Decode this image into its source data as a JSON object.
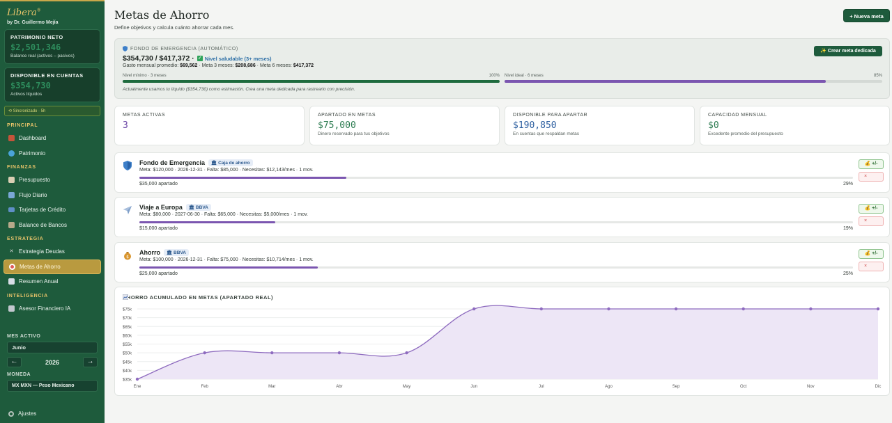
{
  "sidebar": {
    "brand": "Libera",
    "brand_mark": "®",
    "author": "by Dr. Guillermo Mejía",
    "net_worth": {
      "label": "PATRIMONIO NETO",
      "value": "$2,501,346",
      "sub": "Balance real (activos – pasivos)"
    },
    "available": {
      "label": "DISPONIBLE EN CUENTAS",
      "value": "$354,730",
      "sub": "Activos líquidos"
    },
    "sync": "⟲ Sincronizado · 5h",
    "sections": {
      "principal": "PRINCIPAL",
      "finanzas": "FINANZAS",
      "estrategia": "ESTRATEGIA",
      "inteligencia": "INTELIGENCIA"
    },
    "items": {
      "dashboard": "Dashboard",
      "patrimonio": "Patrimonio",
      "presupuesto": "Presupuesto",
      "flujo": "Flujo Diario",
      "tarjetas": "Tarjetas de Crédito",
      "bancos": "Balance de Bancos",
      "deudas": "Estrategia Deudas",
      "metas": "Metas de Ahorro",
      "resumen": "Resumen Anual",
      "asesor": "Asesor Financiero IA"
    },
    "month_label": "MES ACTIVO",
    "month": "Junio",
    "prev": "←",
    "next": "→",
    "year": "2026",
    "currency_label": "MONEDA",
    "currency": "MX MXN — Peso Mexicano",
    "settings": "Ajustes"
  },
  "header": {
    "title": "Metas de Ahorro",
    "subtitle": "Define objetivos y calcula cuánto ahorrar cada mes.",
    "new_goal": "+ Nueva meta"
  },
  "emergency": {
    "title": "FONDO DE EMERGENCIA (AUTOMÁTICO)",
    "amount": "$354,730 / $417,372 ·",
    "health": "Nivel saludable (3+ meses)",
    "line_prefix": "Gasto mensual promedio:",
    "avg_spend": "$69,562",
    "meta3_label": "· Meta 3 meses:",
    "meta3": "$208,686",
    "meta6_label": "· Meta 6 meses:",
    "meta6": "$417,372",
    "create_button": "✨ Crear meta dedicada",
    "min_label": "Nivel mínimo · 3 meses",
    "min_pct": "100%",
    "min_fill": 1.0,
    "ideal_label": "Nivel ideal · 6 meses",
    "ideal_pct": "85%",
    "ideal_fill": 0.85,
    "note": "Actualmente usamos tu líquido ($354,730) como estimación. Crea una meta dedicada para rastrearlo con precisión."
  },
  "stats": [
    {
      "label": "METAS ACTIVAS",
      "value": "3",
      "desc": "",
      "color": "#6b46a6"
    },
    {
      "label": "APARTADO EN METAS",
      "value": "$75,000",
      "desc": "Dinero reservado para tus objetivos",
      "color": "#2a7a4f"
    },
    {
      "label": "DISPONIBLE PARA APARTAR",
      "value": "$190,850",
      "desc": "En cuentas que respaldan metas",
      "color": "#2d5fa0"
    },
    {
      "label": "CAPACIDAD MENSUAL",
      "value": "$0",
      "desc": "Excedente promedio del presupuesto",
      "color": "#2a7a4f"
    }
  ],
  "goals": [
    {
      "name": "Fondo de Emergencia",
      "tag": "🏛 Caja de ahorro",
      "meta": "Meta: $120,000 · 2026-12-31 · Falta: $85,000 · Necesitas: $12,143/mes · 1 mov.",
      "apartado": "$35,000 apartado",
      "pct": "29%",
      "fill": 0.29,
      "icon": "shield-icon",
      "adjust": "💰 +/-",
      "delete": "×"
    },
    {
      "name": "Viaje a Europa",
      "tag": "🏛 BBVA",
      "meta": "Meta: $80,000 · 2027-06-30 · Falta: $65,000 · Necesitas: $5,000/mes · 1 mov.",
      "apartado": "$15,000 apartado",
      "pct": "19%",
      "fill": 0.19,
      "icon": "airplane-icon",
      "adjust": "💰 +/-",
      "delete": "×"
    },
    {
      "name": "Ahorro",
      "tag": "🏛 BBVA",
      "meta": "Meta: $100,000 · 2026-12-31 · Falta: $75,000 · Necesitas: $10,714/mes · 1 mov.",
      "apartado": "$25,000 apartado",
      "pct": "25%",
      "fill": 0.25,
      "icon": "money-bag-icon",
      "adjust": "💰 +/-",
      "delete": "×"
    }
  ],
  "chart_title": "AHORRO ACUMULADO EN METAS (APARTADO REAL)",
  "chart_data": {
    "type": "area",
    "title": "AHORRO ACUMULADO EN METAS (APARTADO REAL)",
    "categories": [
      "Ene",
      "Feb",
      "Mar",
      "Abr",
      "May",
      "Jun",
      "Jul",
      "Ago",
      "Sep",
      "Oct",
      "Nov",
      "Dic"
    ],
    "values": [
      35000,
      50000,
      50000,
      50000,
      50000,
      75000,
      75000,
      75000,
      75000,
      75000,
      75000,
      75000
    ],
    "yticks": [
      "$35k",
      "$40k",
      "$45k",
      "$50k",
      "$55k",
      "$60k",
      "$65k",
      "$70k",
      "$75k"
    ],
    "ylim": [
      35000,
      75000
    ],
    "grid": true,
    "color": "#8e6bbf"
  }
}
